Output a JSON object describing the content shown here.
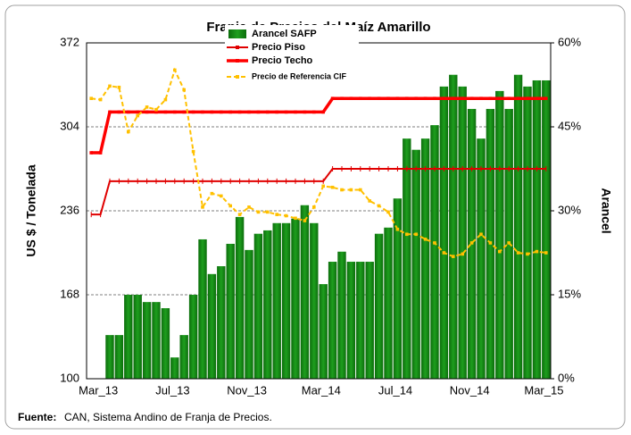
{
  "chart_data": {
    "type": "combo",
    "title": "Franja de Precios del Maíz Amarillo",
    "y_label": "US $ / Tonelada",
    "y2_label": "Arancel",
    "source_label": "Fuente:",
    "source": "CAN, Sistema Andino de Franja de Precios.",
    "categories": [
      "Mar_13",
      null,
      null,
      null,
      null,
      null,
      null,
      null,
      "Jul_13",
      null,
      null,
      null,
      null,
      null,
      null,
      null,
      "Nov_13",
      null,
      null,
      null,
      null,
      null,
      null,
      null,
      "Mar_14",
      null,
      null,
      null,
      null,
      null,
      null,
      null,
      "Jul_14",
      null,
      null,
      null,
      null,
      null,
      null,
      null,
      "Nov_14",
      null,
      null,
      null,
      null,
      null,
      null,
      null,
      "Mar_15",
      null
    ],
    "ylim": [
      100,
      372
    ],
    "yticks": [
      100,
      168,
      236,
      304,
      372
    ],
    "y2lim": [
      0,
      60
    ],
    "y2ticks": [
      {
        "value": 0,
        "label": "0%"
      },
      {
        "value": 15,
        "label": "15%"
      },
      {
        "value": 30,
        "label": "30%"
      },
      {
        "value": 45,
        "label": "45%"
      },
      {
        "value": 60,
        "label": "60%"
      }
    ],
    "grid": true,
    "series": [
      {
        "name": "Arancel SAFP",
        "type": "bar",
        "axis": "y2",
        "color": "#1e9e1e",
        "values": [
          0,
          0,
          7.8,
          7.8,
          15,
          15,
          13.7,
          13.7,
          12.6,
          3.8,
          7.8,
          15,
          24.9,
          18.7,
          20.1,
          24.1,
          28.9,
          23,
          25.9,
          26.5,
          27.8,
          27.8,
          28.6,
          31,
          27.8,
          16.9,
          20.9,
          22.7,
          20.9,
          20.9,
          20.9,
          25.9,
          27,
          32.2,
          42.9,
          40.9,
          42.9,
          45.3,
          52.2,
          54.3,
          52.2,
          48.2,
          42.9,
          48.2,
          51.4,
          48.2,
          54.3,
          52.2,
          53.3,
          53.3
        ]
      },
      {
        "name": "Precio Piso",
        "type": "line",
        "color": "#e00000",
        "values": [
          233,
          233,
          260,
          260,
          260,
          260,
          260,
          260,
          260,
          260,
          260,
          260,
          260,
          260,
          260,
          260,
          260,
          260,
          260,
          260,
          260,
          260,
          260,
          260,
          260,
          260,
          270,
          270,
          270,
          270,
          270,
          270,
          270,
          270,
          270,
          270,
          270,
          270,
          270,
          270,
          270,
          270,
          270,
          270,
          270,
          270,
          270,
          270,
          270,
          270
        ]
      },
      {
        "name": "Precio Techo",
        "type": "line",
        "color": "#ff0000",
        "values": [
          283,
          283,
          316,
          316,
          316,
          316,
          316,
          316,
          316,
          316,
          316,
          316,
          316,
          316,
          316,
          316,
          316,
          316,
          316,
          316,
          316,
          316,
          316,
          316,
          316,
          316,
          327,
          327,
          327,
          327,
          327,
          327,
          327,
          327,
          327,
          327,
          327,
          327,
          327,
          327,
          327,
          327,
          327,
          327,
          327,
          327,
          327,
          327,
          327,
          327
        ]
      },
      {
        "name": "Precio de Referencia CIF",
        "type": "line",
        "color": "#ffc000",
        "values": [
          327,
          326,
          337,
          336,
          300,
          313,
          320,
          318,
          326,
          350,
          334,
          284,
          239,
          250,
          248,
          240,
          233,
          239,
          235,
          235,
          233,
          232,
          230,
          228,
          239,
          256,
          255,
          253,
          253,
          253,
          244,
          240,
          235,
          221,
          217,
          217,
          213,
          210,
          202,
          199,
          201,
          210,
          217,
          210,
          203,
          210,
          202,
          201,
          203,
          202
        ]
      }
    ]
  }
}
